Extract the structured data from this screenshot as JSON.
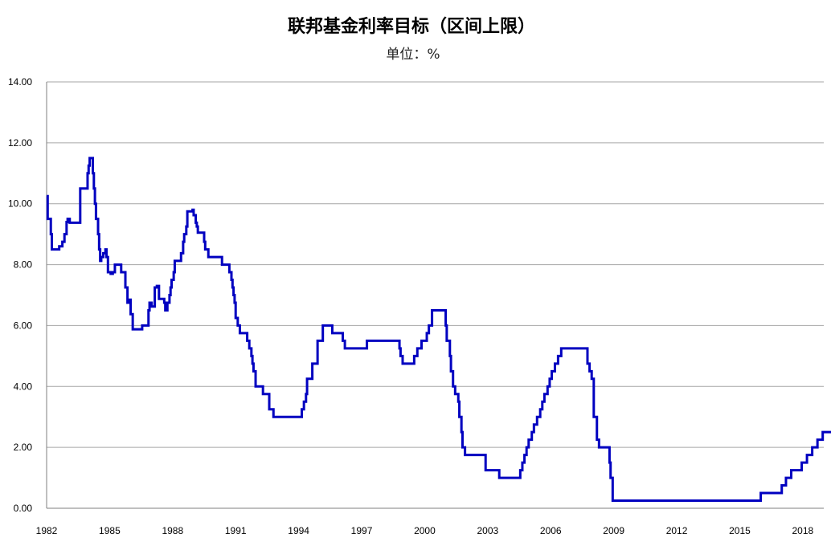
{
  "chart_data": {
    "type": "line",
    "title": "联邦基金利率目标（区间上限）",
    "subtitle": "单位：%",
    "xlabel": "",
    "ylabel": "",
    "xlim": [
      1982,
      2019
    ],
    "ylim": [
      0,
      14
    ],
    "grid": true,
    "y_ticks": [
      "0.00",
      "2.00",
      "4.00",
      "6.00",
      "8.00",
      "10.00",
      "12.00",
      "14.00"
    ],
    "x_ticks": [
      "1982",
      "1985",
      "1988",
      "1991",
      "1994",
      "1997",
      "2000",
      "2003",
      "2006",
      "2009",
      "2012",
      "2015",
      "2018"
    ],
    "series": [
      {
        "name": "",
        "color": "#0000c0",
        "step": true,
        "points": [
          [
            1982.0,
            10.25
          ],
          [
            1982.05,
            9.5
          ],
          [
            1982.2,
            9.0
          ],
          [
            1982.25,
            8.5
          ],
          [
            1982.55,
            8.5
          ],
          [
            1982.6,
            8.6
          ],
          [
            1982.75,
            8.75
          ],
          [
            1982.85,
            9.0
          ],
          [
            1982.95,
            9.4
          ],
          [
            1983.0,
            9.5
          ],
          [
            1983.1,
            9.375
          ],
          [
            1983.55,
            9.375
          ],
          [
            1983.6,
            10.5
          ],
          [
            1983.9,
            10.5
          ],
          [
            1983.95,
            11.0
          ],
          [
            1984.0,
            11.25
          ],
          [
            1984.05,
            11.5
          ],
          [
            1984.2,
            11.0
          ],
          [
            1984.25,
            10.5
          ],
          [
            1984.3,
            10.0
          ],
          [
            1984.35,
            9.5
          ],
          [
            1984.45,
            9.0
          ],
          [
            1984.5,
            8.5
          ],
          [
            1984.55,
            8.125
          ],
          [
            1984.6,
            8.25
          ],
          [
            1984.7,
            8.375
          ],
          [
            1984.8,
            8.5
          ],
          [
            1984.85,
            8.25
          ],
          [
            1984.92,
            7.75
          ],
          [
            1985.05,
            7.7
          ],
          [
            1985.15,
            7.75
          ],
          [
            1985.25,
            8.0
          ],
          [
            1985.5,
            8.0
          ],
          [
            1985.55,
            7.75
          ],
          [
            1985.75,
            7.25
          ],
          [
            1985.85,
            6.75
          ],
          [
            1985.95,
            6.85
          ],
          [
            1986.0,
            6.375
          ],
          [
            1986.1,
            5.875
          ],
          [
            1986.5,
            5.875
          ],
          [
            1986.55,
            6.0
          ],
          [
            1986.8,
            6.0
          ],
          [
            1986.85,
            6.5
          ],
          [
            1986.9,
            6.75
          ],
          [
            1987.0,
            6.625
          ],
          [
            1987.15,
            7.25
          ],
          [
            1987.25,
            7.3
          ],
          [
            1987.35,
            6.875
          ],
          [
            1987.6,
            6.75
          ],
          [
            1987.65,
            6.5
          ],
          [
            1987.75,
            6.75
          ],
          [
            1987.85,
            7.0
          ],
          [
            1987.9,
            7.25
          ],
          [
            1987.95,
            7.5
          ],
          [
            1988.05,
            7.75
          ],
          [
            1988.1,
            8.125
          ],
          [
            1988.35,
            8.125
          ],
          [
            1988.4,
            8.375
          ],
          [
            1988.5,
            8.75
          ],
          [
            1988.55,
            9.0
          ],
          [
            1988.65,
            9.25
          ],
          [
            1988.7,
            9.75
          ],
          [
            1988.95,
            9.8
          ],
          [
            1989.0,
            9.625
          ],
          [
            1989.1,
            9.375
          ],
          [
            1989.15,
            9.25
          ],
          [
            1989.2,
            9.05
          ],
          [
            1989.45,
            9.05
          ],
          [
            1989.5,
            8.75
          ],
          [
            1989.55,
            8.5
          ],
          [
            1989.7,
            8.25
          ],
          [
            1990.3,
            8.25
          ],
          [
            1990.35,
            8.0
          ],
          [
            1990.65,
            8.0
          ],
          [
            1990.7,
            7.75
          ],
          [
            1990.8,
            7.5
          ],
          [
            1990.85,
            7.25
          ],
          [
            1990.9,
            7.0
          ],
          [
            1990.95,
            6.75
          ],
          [
            1991.0,
            6.25
          ],
          [
            1991.1,
            6.0
          ],
          [
            1991.2,
            5.75
          ],
          [
            1991.5,
            5.75
          ],
          [
            1991.55,
            5.5
          ],
          [
            1991.65,
            5.25
          ],
          [
            1991.75,
            5.0
          ],
          [
            1991.8,
            4.75
          ],
          [
            1991.85,
            4.5
          ],
          [
            1991.95,
            4.0
          ],
          [
            1992.25,
            4.0
          ],
          [
            1992.3,
            3.75
          ],
          [
            1992.55,
            3.75
          ],
          [
            1992.6,
            3.25
          ],
          [
            1992.75,
            3.25
          ],
          [
            1992.8,
            3.0
          ],
          [
            1994.1,
            3.0
          ],
          [
            1994.15,
            3.25
          ],
          [
            1994.25,
            3.5
          ],
          [
            1994.35,
            3.75
          ],
          [
            1994.4,
            4.25
          ],
          [
            1994.6,
            4.25
          ],
          [
            1994.65,
            4.75
          ],
          [
            1994.85,
            4.75
          ],
          [
            1994.9,
            5.5
          ],
          [
            1995.1,
            5.5
          ],
          [
            1995.15,
            6.0
          ],
          [
            1995.55,
            6.0
          ],
          [
            1995.6,
            5.75
          ],
          [
            1996.05,
            5.75
          ],
          [
            1996.1,
            5.5
          ],
          [
            1996.2,
            5.25
          ],
          [
            1997.2,
            5.25
          ],
          [
            1997.25,
            5.5
          ],
          [
            1998.75,
            5.5
          ],
          [
            1998.8,
            5.25
          ],
          [
            1998.85,
            5.0
          ],
          [
            1998.95,
            4.75
          ],
          [
            1999.45,
            4.75
          ],
          [
            1999.5,
            5.0
          ],
          [
            1999.65,
            5.25
          ],
          [
            1999.85,
            5.5
          ],
          [
            2000.1,
            5.75
          ],
          [
            2000.2,
            6.0
          ],
          [
            2000.35,
            6.5
          ],
          [
            2000.95,
            6.5
          ],
          [
            2001.0,
            6.0
          ],
          [
            2001.05,
            5.5
          ],
          [
            2001.2,
            5.0
          ],
          [
            2001.25,
            4.5
          ],
          [
            2001.35,
            4.0
          ],
          [
            2001.45,
            3.75
          ],
          [
            2001.6,
            3.5
          ],
          [
            2001.65,
            3.0
          ],
          [
            2001.75,
            2.5
          ],
          [
            2001.8,
            2.0
          ],
          [
            2001.92,
            1.75
          ],
          [
            2002.85,
            1.75
          ],
          [
            2002.9,
            1.25
          ],
          [
            2003.5,
            1.25
          ],
          [
            2003.55,
            1.0
          ],
          [
            2004.5,
            1.0
          ],
          [
            2004.55,
            1.25
          ],
          [
            2004.65,
            1.5
          ],
          [
            2004.75,
            1.75
          ],
          [
            2004.85,
            2.0
          ],
          [
            2004.95,
            2.25
          ],
          [
            2005.1,
            2.5
          ],
          [
            2005.2,
            2.75
          ],
          [
            2005.35,
            3.0
          ],
          [
            2005.5,
            3.25
          ],
          [
            2005.6,
            3.5
          ],
          [
            2005.7,
            3.75
          ],
          [
            2005.85,
            4.0
          ],
          [
            2005.95,
            4.25
          ],
          [
            2006.05,
            4.5
          ],
          [
            2006.2,
            4.75
          ],
          [
            2006.35,
            5.0
          ],
          [
            2006.5,
            5.25
          ],
          [
            2007.7,
            5.25
          ],
          [
            2007.75,
            4.75
          ],
          [
            2007.85,
            4.5
          ],
          [
            2007.95,
            4.25
          ],
          [
            2008.05,
            3.0
          ],
          [
            2008.2,
            2.25
          ],
          [
            2008.3,
            2.0
          ],
          [
            2008.75,
            2.0
          ],
          [
            2008.8,
            1.5
          ],
          [
            2008.85,
            1.0
          ],
          [
            2008.95,
            0.25
          ],
          [
            2015.95,
            0.25
          ],
          [
            2016.0,
            0.5
          ],
          [
            2016.95,
            0.5
          ],
          [
            2017.0,
            0.75
          ],
          [
            2017.2,
            1.0
          ],
          [
            2017.45,
            1.25
          ],
          [
            2017.95,
            1.5
          ],
          [
            2018.2,
            1.75
          ],
          [
            2018.45,
            2.0
          ],
          [
            2018.7,
            2.25
          ],
          [
            2018.95,
            2.5
          ],
          [
            2019.55,
            2.5
          ],
          [
            2019.62,
            2.25
          ],
          [
            2019.7,
            2.25
          ]
        ]
      }
    ]
  }
}
